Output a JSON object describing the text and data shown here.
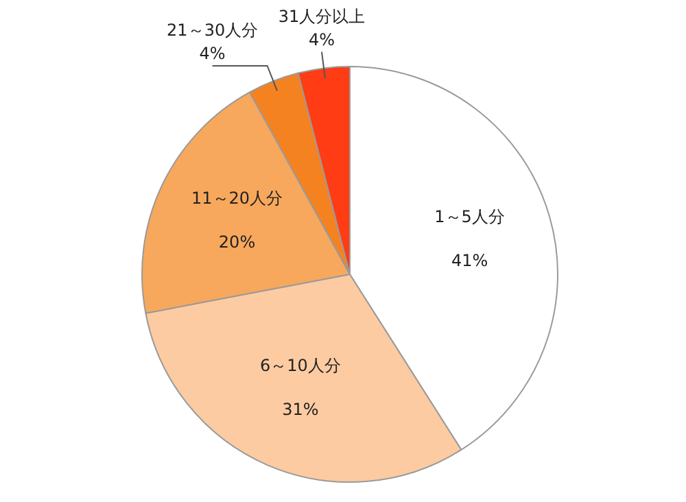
{
  "chart_data": {
    "type": "pie",
    "categories": [
      "1～5人分",
      "6～10人分",
      "11～20人分",
      "21～30人分",
      "31人分以上"
    ],
    "values": [
      41,
      31,
      20,
      4,
      4
    ],
    "colors": [
      "#ffffff",
      "#fccba2",
      "#f7a85c",
      "#f58220",
      "#ff3c14"
    ],
    "value_labels": [
      "41%",
      "31%",
      "20%",
      "4%",
      "4%"
    ]
  }
}
